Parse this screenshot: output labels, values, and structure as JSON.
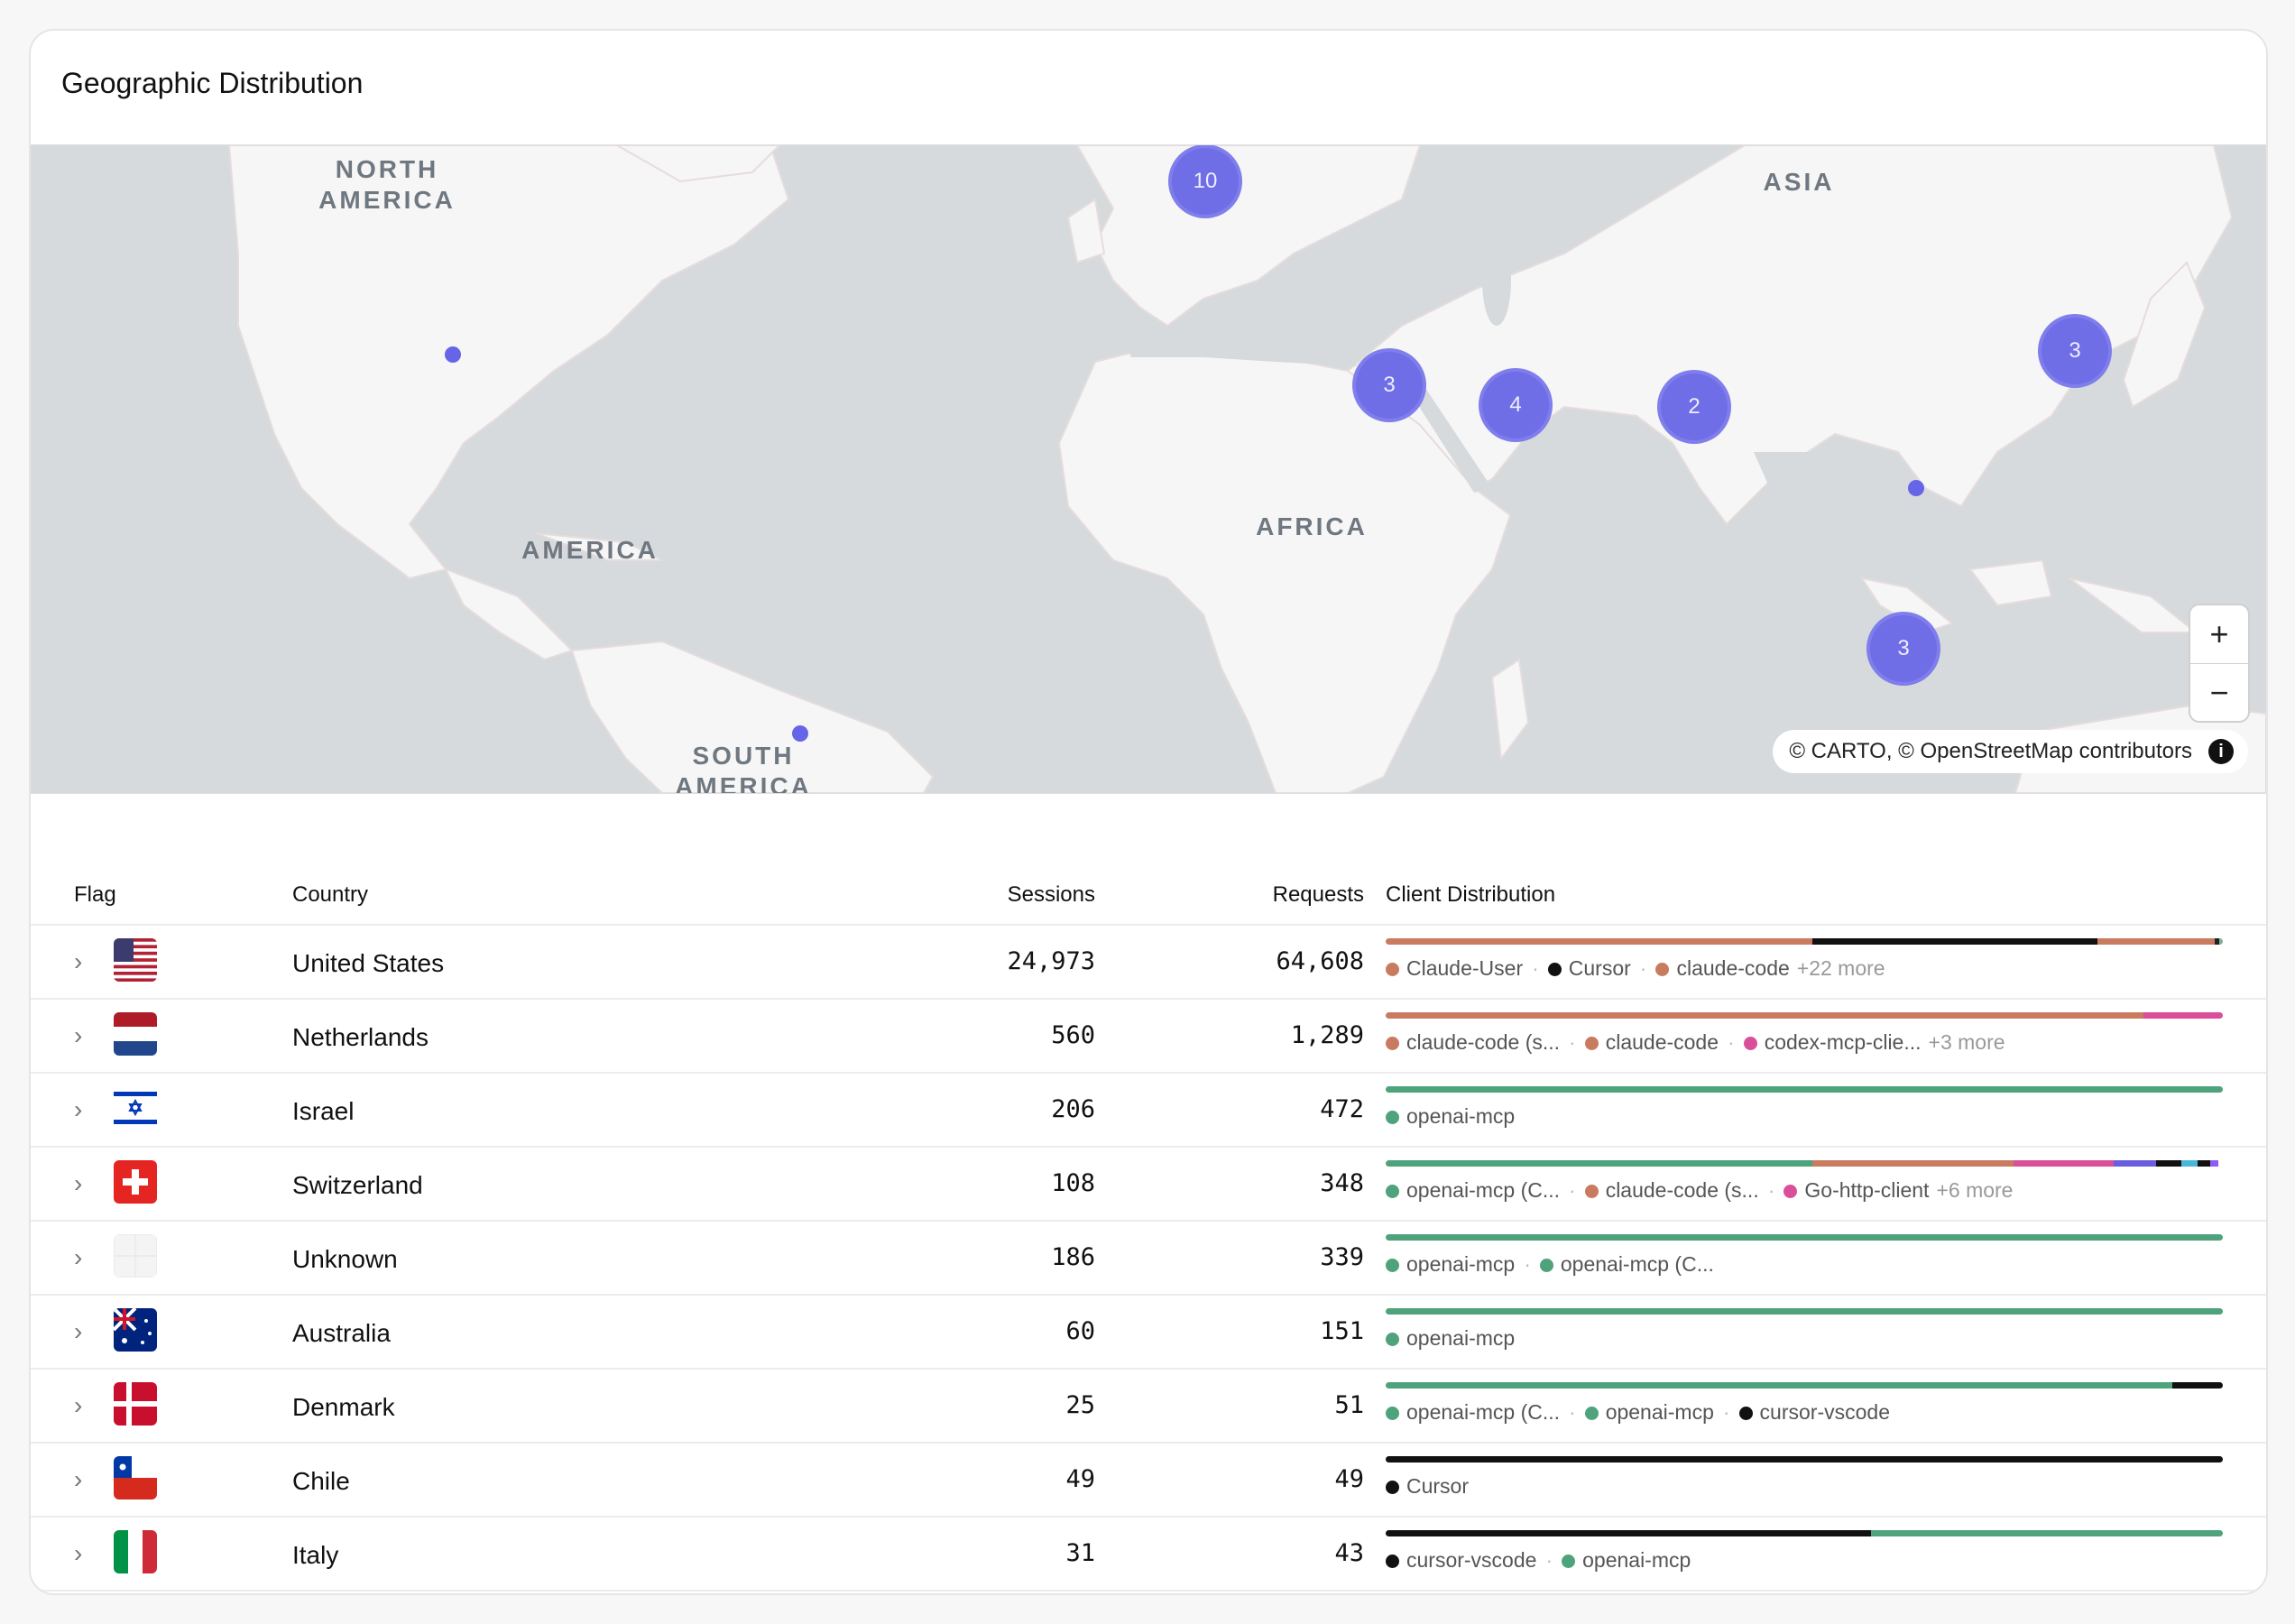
{
  "card": {
    "title": "Geographic Distribution"
  },
  "map": {
    "labels": {
      "north_america": "NORTH AMERICA",
      "america": "AMERICA",
      "south_america": "SOUTH AMERICA",
      "africa": "AFRICA",
      "asia": "ASIA"
    },
    "clusters": {
      "europe": "10",
      "levant": "3",
      "gulf": "4",
      "south_asia": "2",
      "korea_japan": "3",
      "southeast_asia": "3"
    },
    "zoom_in": "+",
    "zoom_out": "−",
    "attribution": "© CARTO, © OpenStreetMap contributors",
    "info": "i"
  },
  "table": {
    "headers": {
      "flag": "Flag",
      "country": "Country",
      "sessions": "Sessions",
      "requests": "Requests",
      "client": "Client Distribution"
    },
    "chevron": "›",
    "rows": [
      {
        "country": "United States",
        "sessions": "24,973",
        "requests": "64,608",
        "legend": [
          {
            "label": "Claude-User",
            "color": "#c97b5f"
          },
          {
            "label": "Cursor",
            "color": "#111111"
          },
          {
            "label": "claude-code",
            "color": "#c97b5f"
          }
        ],
        "more": "+22 more"
      },
      {
        "country": "Netherlands",
        "sessions": "560",
        "requests": "1,289",
        "legend": [
          {
            "label": "claude-code (s...",
            "color": "#c97b5f"
          },
          {
            "label": "claude-code",
            "color": "#c97b5f"
          },
          {
            "label": "codex-mcp-clie...",
            "color": "#d94f9a"
          }
        ],
        "more": "+3 more"
      },
      {
        "country": "Israel",
        "sessions": "206",
        "requests": "472",
        "legend": [
          {
            "label": "openai-mcp",
            "color": "#4fa37c"
          }
        ],
        "more": ""
      },
      {
        "country": "Switzerland",
        "sessions": "108",
        "requests": "348",
        "legend": [
          {
            "label": "openai-mcp (C...",
            "color": "#4fa37c"
          },
          {
            "label": "claude-code (s...",
            "color": "#c97b5f"
          },
          {
            "label": "Go-http-client",
            "color": "#d94f9a"
          }
        ],
        "more": "+6 more"
      },
      {
        "country": "Unknown",
        "sessions": "186",
        "requests": "339",
        "legend": [
          {
            "label": "openai-mcp",
            "color": "#4fa37c"
          },
          {
            "label": "openai-mcp (C...",
            "color": "#4fa37c"
          }
        ],
        "more": ""
      },
      {
        "country": "Australia",
        "sessions": "60",
        "requests": "151",
        "legend": [
          {
            "label": "openai-mcp",
            "color": "#4fa37c"
          }
        ],
        "more": ""
      },
      {
        "country": "Denmark",
        "sessions": "25",
        "requests": "51",
        "legend": [
          {
            "label": "openai-mcp (C...",
            "color": "#4fa37c"
          },
          {
            "label": "openai-mcp",
            "color": "#4fa37c"
          },
          {
            "label": "cursor-vscode",
            "color": "#111111"
          }
        ],
        "more": ""
      },
      {
        "country": "Chile",
        "sessions": "49",
        "requests": "49",
        "legend": [
          {
            "label": "Cursor",
            "color": "#111111"
          }
        ],
        "more": ""
      },
      {
        "country": "Italy",
        "sessions": "31",
        "requests": "43",
        "legend": [
          {
            "label": "cursor-vscode",
            "color": "#111111"
          },
          {
            "label": "openai-mcp",
            "color": "#4fa37c"
          }
        ],
        "more": ""
      }
    ],
    "bars": [
      [
        {
          "share": 0.51,
          "color": "#c97b5f"
        },
        {
          "share": 0.34,
          "color": "#111111"
        },
        {
          "share": 0.14,
          "color": "#c97b5f"
        },
        {
          "share": 0.006,
          "color": "#222222"
        },
        {
          "share": 0.004,
          "color": "#7fb0a0"
        }
      ],
      [
        {
          "share": 0.905,
          "color": "#c97b5f"
        },
        {
          "share": 0.095,
          "color": "#d94f9a"
        }
      ],
      [
        {
          "share": 1.0,
          "color": "#4fa37c"
        }
      ],
      [
        {
          "share": 0.51,
          "color": "#4fa37c"
        },
        {
          "share": 0.24,
          "color": "#c97b5f"
        },
        {
          "share": 0.12,
          "color": "#d94f9a"
        },
        {
          "share": 0.05,
          "color": "#6a5de0"
        },
        {
          "share": 0.03,
          "color": "#111111"
        },
        {
          "share": 0.02,
          "color": "#4ab6d8"
        },
        {
          "share": 0.015,
          "color": "#111111"
        },
        {
          "share": 0.01,
          "color": "#8b5cf6"
        }
      ],
      [
        {
          "share": 1.0,
          "color": "#4fa37c"
        }
      ],
      [
        {
          "share": 1.0,
          "color": "#4fa37c"
        }
      ],
      [
        {
          "share": 0.94,
          "color": "#4fa37c"
        },
        {
          "share": 0.06,
          "color": "#111111"
        }
      ],
      [
        {
          "share": 1.0,
          "color": "#111111"
        }
      ],
      [
        {
          "share": 0.58,
          "color": "#111111"
        },
        {
          "share": 0.42,
          "color": "#4fa37c"
        }
      ]
    ]
  }
}
